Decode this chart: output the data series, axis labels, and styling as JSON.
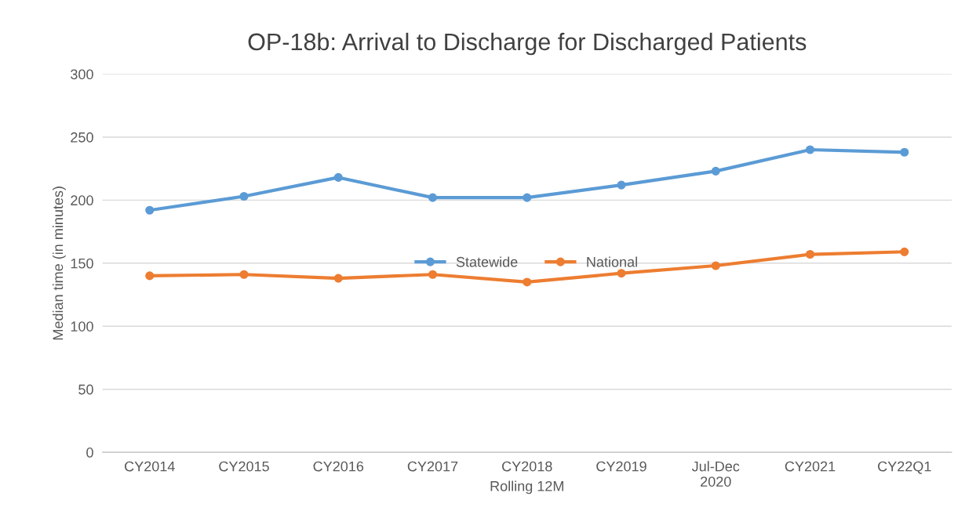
{
  "chart_data": {
    "type": "line",
    "title": "OP-18b: Arrival to Discharge for Discharged Patients",
    "xlabel": "Rolling 12M",
    "ylabel": "Median time (in minutes)",
    "categories": [
      "CY2014",
      "CY2015",
      "CY2016",
      "CY2017",
      "CY2018",
      "CY2019",
      "Jul-Dec\n2020",
      "CY2021",
      "CY22Q1"
    ],
    "series": [
      {
        "name": "Statewide",
        "color": "#5b9bd5",
        "values": [
          192,
          203,
          218,
          202,
          202,
          212,
          223,
          240,
          238
        ]
      },
      {
        "name": "National",
        "color": "#ed7d31",
        "values": [
          140,
          141,
          138,
          141,
          135,
          142,
          148,
          157,
          159
        ]
      }
    ],
    "ylim": [
      0,
      300
    ],
    "yticks": [
      0,
      50,
      100,
      150,
      200,
      250,
      300
    ],
    "grid": "y",
    "legend": "center",
    "marker": "circle",
    "line_style": "solid"
  }
}
